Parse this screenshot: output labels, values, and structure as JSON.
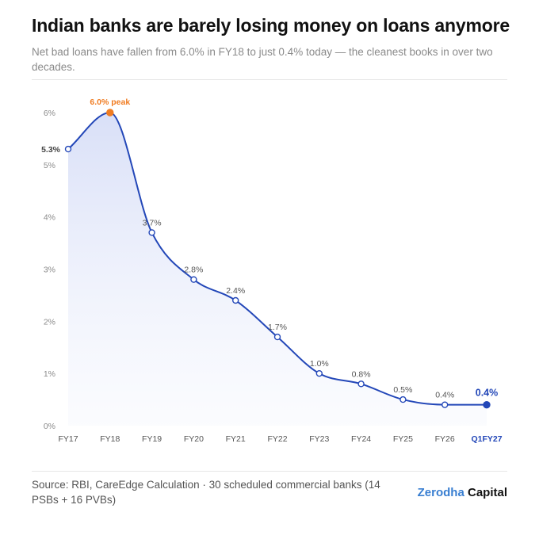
{
  "header": {
    "title": "Indian banks are barely losing money on loans anymore",
    "subtitle": "Net bad loans have fallen from 6.0% in FY18 to just 0.4% today — the cleanest books in over two decades."
  },
  "footer": {
    "source": "Source: RBI, CareEdge Calculation · 30 scheduled commercial banks (14 PSBs + 16 PVBs)",
    "brand_part1": "Zerodha",
    "brand_part2": "Capital"
  },
  "colors": {
    "line": "#2347b8",
    "peak": "#f07c22",
    "highlight": "#2347b8",
    "brand_blue": "#387ed1"
  },
  "chart_data": {
    "type": "area",
    "x": [
      "FY17",
      "FY18",
      "FY19",
      "FY20",
      "FY21",
      "FY22",
      "FY23",
      "FY24",
      "FY25",
      "FY26",
      "Q1FY27"
    ],
    "y": [
      5.3,
      6.0,
      3.7,
      2.8,
      2.4,
      1.7,
      1.0,
      0.8,
      0.5,
      0.4,
      0.4
    ],
    "point_labels": [
      "5.3%",
      "6.0% peak",
      "3.7%",
      "2.8%",
      "2.4%",
      "1.7%",
      "1.0%",
      "0.8%",
      "0.5%",
      "0.4%",
      "0.4%"
    ],
    "y_ticks": [
      0,
      1,
      2,
      3,
      4,
      5,
      6
    ],
    "y_tick_labels": [
      "0%",
      "1%",
      "2%",
      "3%",
      "4%",
      "5%",
      "6%"
    ],
    "ylim": [
      0,
      6
    ],
    "peak_index": 1,
    "highlight_index": 10,
    "grid": false,
    "legend": false
  }
}
